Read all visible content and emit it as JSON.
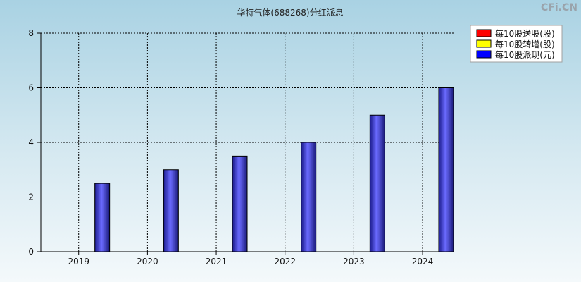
{
  "watermark": "CFi.CN",
  "chart_data": {
    "type": "bar",
    "title": "华特气体(688268)分红派息",
    "categories": [
      "2019",
      "2020",
      "2021",
      "2022",
      "2023",
      "2024"
    ],
    "series": [
      {
        "name": "每10股送股(股)",
        "color": "#ff0000",
        "values": [
          0,
          0,
          0,
          0,
          0,
          0
        ]
      },
      {
        "name": "每10股转增(股)",
        "color": "#ffff00",
        "values": [
          0,
          0,
          0,
          0,
          0,
          0
        ]
      },
      {
        "name": "每10股派现(元)",
        "color": "#0000ff",
        "values": [
          2.5,
          3,
          3.5,
          4,
          5,
          6
        ]
      }
    ],
    "ylim": [
      0,
      8
    ],
    "yticks": [
      0,
      2,
      4,
      6,
      8
    ],
    "grid": true,
    "legend_position": "top-right",
    "xlabel": "",
    "ylabel": ""
  }
}
